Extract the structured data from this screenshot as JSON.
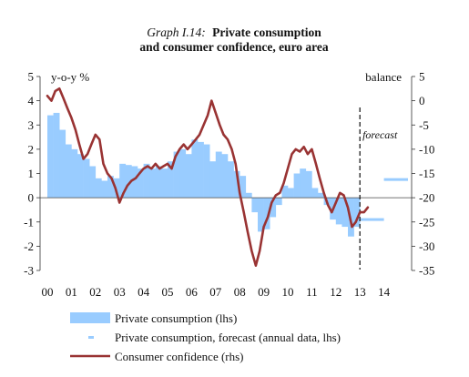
{
  "chart_data": {
    "type": "bar",
    "title_prefix": "Graph I.14:",
    "title_line1": "Private consumption",
    "title_line2": "and consumer confidence, euro area",
    "ylabel_left": "y-o-y %",
    "ylabel_right": "balance",
    "forecast_label": "forecast",
    "ylim_left": [
      -3,
      5
    ],
    "ylim_right": [
      -35,
      5
    ],
    "left_ticks": [
      "5",
      "4",
      "3",
      "2",
      "1",
      "0",
      "-1",
      "-2",
      "-3"
    ],
    "right_ticks": [
      "5",
      "0",
      "-5",
      "-10",
      "-15",
      "-20",
      "-25",
      "-30",
      "-35"
    ],
    "x_ticks": [
      "00",
      "01",
      "02",
      "03",
      "04",
      "05",
      "06",
      "07",
      "08",
      "09",
      "10",
      "11",
      "12",
      "13",
      "14"
    ],
    "forecast_start": 13.0,
    "series": [
      {
        "name": "Private consumption (lhs)",
        "type": "bar",
        "color": "#99ccff",
        "x": [
          0.0,
          0.25,
          0.5,
          0.75,
          1.0,
          1.25,
          1.5,
          1.75,
          2.0,
          2.25,
          2.5,
          2.75,
          3.0,
          3.25,
          3.5,
          3.75,
          4.0,
          4.25,
          4.5,
          4.75,
          5.0,
          5.25,
          5.5,
          5.75,
          6.0,
          6.25,
          6.5,
          6.75,
          7.0,
          7.25,
          7.5,
          7.75,
          8.0,
          8.25,
          8.5,
          8.75,
          9.0,
          9.25,
          9.5,
          9.75,
          10.0,
          10.25,
          10.5,
          10.75,
          11.0,
          11.25,
          11.5,
          11.75,
          12.0,
          12.25,
          12.5,
          12.75
        ],
        "values": [
          3.4,
          3.5,
          2.8,
          2.2,
          2.0,
          1.8,
          1.6,
          1.3,
          0.8,
          0.7,
          0.9,
          0.8,
          1.4,
          1.35,
          1.3,
          1.2,
          1.4,
          1.2,
          1.3,
          1.2,
          1.5,
          1.9,
          2.0,
          1.8,
          2.4,
          2.3,
          2.2,
          1.5,
          1.9,
          1.8,
          1.5,
          1.1,
          0.9,
          0.2,
          -0.6,
          -1.4,
          -1.3,
          -0.8,
          -0.3,
          0.5,
          0.4,
          1.0,
          1.2,
          1.1,
          0.4,
          0.2,
          -0.3,
          -0.9,
          -1.1,
          -1.2,
          -1.6,
          -1.2
        ]
      },
      {
        "name": "Private consumption, forecast (annual data, lhs)",
        "type": "step",
        "color": "#99ccff",
        "segments": [
          {
            "x0": 13.0,
            "x1": 14.0,
            "value": -0.9
          },
          {
            "x0": 14.0,
            "x1": 15.0,
            "value": 0.75
          }
        ]
      },
      {
        "name": "Consumer confidence (rhs)",
        "type": "line",
        "color": "#993333",
        "x": [
          0.0,
          0.17,
          0.33,
          0.5,
          0.67,
          0.83,
          1.0,
          1.17,
          1.33,
          1.5,
          1.67,
          1.83,
          2.0,
          2.17,
          2.33,
          2.5,
          2.67,
          2.83,
          3.0,
          3.17,
          3.33,
          3.5,
          3.67,
          3.83,
          4.0,
          4.17,
          4.33,
          4.5,
          4.67,
          4.83,
          5.0,
          5.17,
          5.33,
          5.5,
          5.67,
          5.83,
          6.0,
          6.17,
          6.33,
          6.5,
          6.67,
          6.83,
          7.0,
          7.17,
          7.33,
          7.5,
          7.67,
          7.83,
          8.0,
          8.17,
          8.33,
          8.5,
          8.67,
          8.83,
          9.0,
          9.17,
          9.33,
          9.5,
          9.67,
          9.83,
          10.0,
          10.17,
          10.33,
          10.5,
          10.67,
          10.83,
          11.0,
          11.17,
          11.33,
          11.5,
          11.67,
          11.83,
          12.0,
          12.17,
          12.33,
          12.5,
          12.67,
          12.83,
          13.0,
          13.17,
          13.33
        ],
        "values": [
          1,
          0,
          2,
          2.5,
          0.5,
          -1.5,
          -3.5,
          -6,
          -9,
          -12,
          -11,
          -9,
          -7,
          -8,
          -13,
          -15,
          -16,
          -18,
          -21,
          -19,
          -17.5,
          -16.5,
          -16,
          -15,
          -14,
          -13.5,
          -14,
          -13,
          -14,
          -13.5,
          -13,
          -14,
          -11.5,
          -10,
          -9,
          -10,
          -9,
          -8,
          -7,
          -5,
          -3,
          0,
          -2.5,
          -5,
          -7,
          -8,
          -10,
          -13,
          -19,
          -23,
          -27,
          -31,
          -34,
          -31,
          -26,
          -24,
          -21,
          -19.5,
          -19,
          -17,
          -14,
          -11,
          -10,
          -10.5,
          -9.5,
          -11,
          -10,
          -13,
          -16,
          -19,
          -21.5,
          -23,
          -21,
          -19,
          -19.5,
          -22,
          -26,
          -25,
          -23,
          -23,
          -22
        ]
      }
    ],
    "legend": [
      {
        "label": "Private consumption (lhs)",
        "marker": "box"
      },
      {
        "label": "Private consumption, forecast (annual data, lhs)",
        "marker": "dash"
      },
      {
        "label": "Consumer confidence (rhs)",
        "marker": "line"
      }
    ]
  }
}
